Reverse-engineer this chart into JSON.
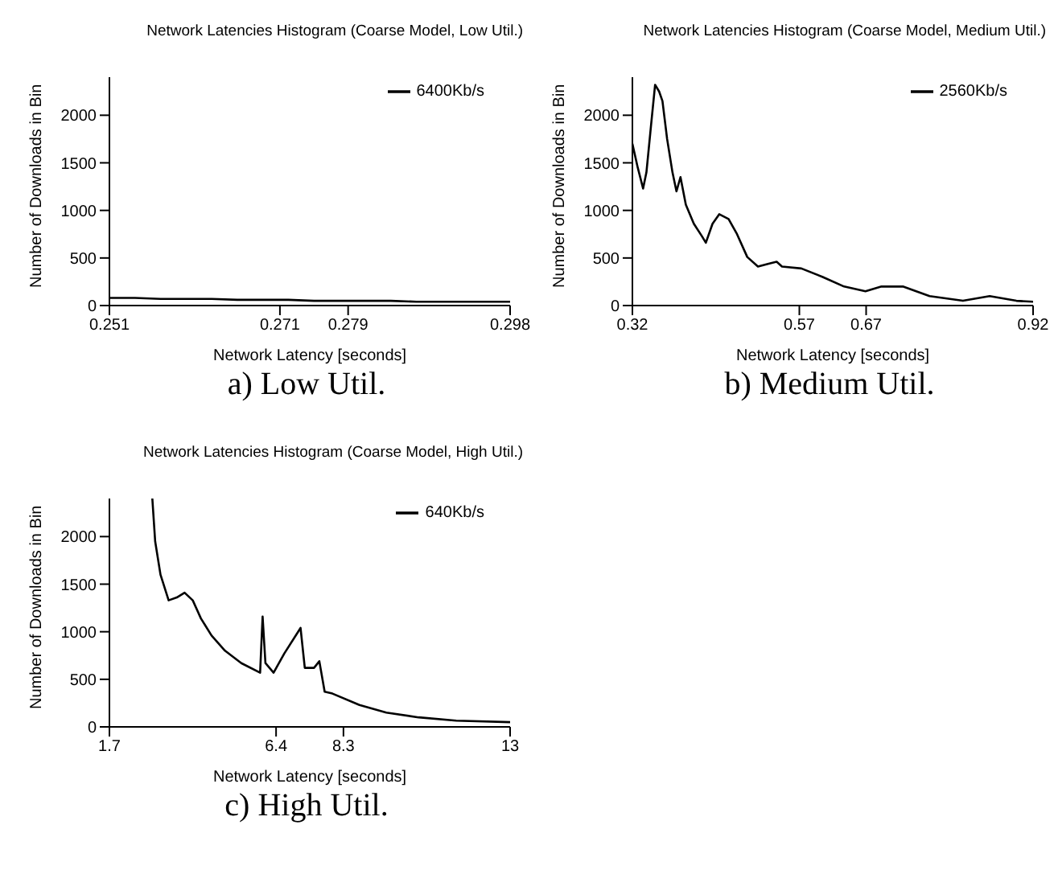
{
  "chart_data": [
    {
      "type": "line",
      "title": "Network Latencies Histogram (Coarse Model, Low Util.)",
      "xlabel": "Network Latency [seconds]",
      "ylabel": "Number of Downloads in Bin",
      "annotations": [
        "a) Low Util."
      ],
      "xlim": [
        0.251,
        0.298
      ],
      "xticks": [
        0.251,
        0.271,
        0.279,
        0.298
      ],
      "ylim": [
        0,
        2400
      ],
      "yticks": [
        0,
        500,
        1000,
        1500,
        2000
      ],
      "legend": "top right",
      "series": [
        {
          "name": "6400Kb/s",
          "color": "#000000",
          "x": [
            0.251,
            0.254,
            0.257,
            0.26,
            0.263,
            0.266,
            0.269,
            0.272,
            0.275,
            0.278,
            0.281,
            0.284,
            0.287,
            0.29,
            0.293,
            0.296,
            0.298
          ],
          "values": [
            80,
            80,
            70,
            70,
            70,
            60,
            60,
            60,
            50,
            50,
            50,
            50,
            40,
            40,
            40,
            40,
            40
          ]
        }
      ]
    },
    {
      "type": "line",
      "title": "Network Latencies Histogram (Coarse Model, Medium Util.)",
      "xlabel": "Network Latency [seconds]",
      "ylabel": "Number of Downloads in Bin",
      "annotations": [
        "b) Medium Util."
      ],
      "xlim": [
        0.32,
        0.92
      ],
      "xticks": [
        0.32,
        0.57,
        0.67,
        0.92
      ],
      "ylim": [
        0,
        2400
      ],
      "yticks": [
        0,
        500,
        1000,
        1500,
        2000
      ],
      "legend": "top right",
      "series": [
        {
          "name": "2560Kb/s",
          "color": "#000000",
          "x": [
            0.32,
            0.328,
            0.336,
            0.341,
            0.348,
            0.354,
            0.36,
            0.365,
            0.372,
            0.38,
            0.386,
            0.392,
            0.4,
            0.412,
            0.424,
            0.43,
            0.44,
            0.45,
            0.464,
            0.476,
            0.492,
            0.508,
            0.524,
            0.536,
            0.544,
            0.573,
            0.605,
            0.637,
            0.669,
            0.693,
            0.725,
            0.765,
            0.815,
            0.855,
            0.895,
            0.92
          ],
          "values": [
            1700,
            1450,
            1230,
            1400,
            1900,
            2320,
            2250,
            2150,
            1750,
            1400,
            1200,
            1350,
            1060,
            860,
            730,
            660,
            860,
            960,
            910,
            760,
            510,
            410,
            440,
            460,
            410,
            390,
            300,
            200,
            150,
            200,
            200,
            100,
            50,
            100,
            50,
            40
          ]
        }
      ]
    },
    {
      "type": "line",
      "title": "Network Latencies Histogram (Coarse Model, High Util.)",
      "xlabel": "Network Latency [seconds]",
      "ylabel": "Number of Downloads in Bin",
      "annotations": [
        "c) High Util."
      ],
      "xlim": [
        1.7,
        13
      ],
      "xticks": [
        1.7,
        6.4,
        8.3,
        13
      ],
      "ylim": [
        0,
        2400
      ],
      "yticks": [
        0,
        500,
        1000,
        1500,
        2000
      ],
      "legend": "top right",
      "series": [
        {
          "name": "640Kb/s",
          "color": "#000000",
          "x": [
            2.91,
            2.99,
            3.14,
            3.37,
            3.6,
            3.82,
            4.05,
            4.28,
            4.58,
            4.96,
            5.42,
            5.95,
            6.02,
            6.1,
            6.33,
            6.63,
            7.09,
            7.21,
            7.47,
            7.62,
            7.77,
            7.99,
            8.75,
            9.51,
            10.42,
            11.48,
            13
          ],
          "values": [
            2400,
            1950,
            1600,
            1330,
            1360,
            1410,
            1330,
            1140,
            960,
            800,
            670,
            570,
            1160,
            670,
            570,
            770,
            1040,
            620,
            620,
            690,
            370,
            350,
            230,
            150,
            100,
            65,
            50
          ]
        }
      ]
    }
  ]
}
